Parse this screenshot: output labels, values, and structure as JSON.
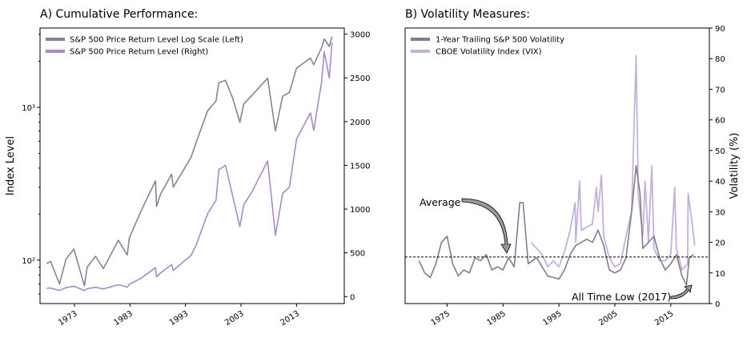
{
  "chart_data": [
    {
      "type": "line",
      "title": "A) Cumulative Performance:",
      "ylabel": "Index Level",
      "y_scale": "log",
      "ylim_left": [
        52,
        3300
      ],
      "ylim_right": [
        -80,
        3070
      ],
      "xlim": [
        1966.8,
        2021.6
      ],
      "x_ticks": [
        "1973",
        "1983",
        "1993",
        "2003",
        "2013"
      ],
      "y_ticks_left": [
        "10³",
        "10²"
      ],
      "y_ticks_right": [
        "3000",
        "2500",
        "2000",
        "1500",
        "1000",
        "500",
        "0"
      ],
      "legend_placement": "top-left",
      "colors": {
        "log_series": "#8c8097",
        "right_series": "#a888cf"
      },
      "series": [
        {
          "name": "S&P 500 Price Return Level Log Scale (Left)",
          "axis": "left",
          "x": [
            1968,
            1968.7,
            1970.3,
            1971.5,
            1972.9,
            1974.8,
            1975.3,
            1976.8,
            1978.2,
            1980.9,
            1982.5,
            1982.9,
            1985,
            1987.6,
            1987.8,
            1988.5,
            1990.5,
            1990.8,
            1994,
            1995,
            1997,
            1998.5,
            1999,
            2000.2,
            2001.5,
            2002.8,
            2003.5,
            2005,
            2007.8,
            2009.2,
            2010.5,
            2011.7,
            2013,
            2015.5,
            2016.1,
            2017.5,
            2018,
            2018.9,
            2019.4
          ],
          "y": [
            95,
            98,
            70,
            102,
            118,
            68,
            90,
            106,
            88,
            135,
            108,
            140,
            210,
            330,
            225,
            270,
            365,
            300,
            470,
            600,
            950,
            1100,
            1450,
            1500,
            1150,
            800,
            1050,
            1200,
            1550,
            700,
            1180,
            1250,
            1800,
            2100,
            1900,
            2450,
            2800,
            2500,
            2900
          ]
        },
        {
          "name": "S&P 500 Price Return Level (Right)",
          "axis": "right",
          "x": [
            1968,
            1968.7,
            1970.3,
            1971.5,
            1972.9,
            1974.8,
            1975.3,
            1976.8,
            1978.2,
            1980.9,
            1982.5,
            1982.9,
            1985,
            1987.6,
            1987.8,
            1988.5,
            1990.5,
            1990.8,
            1994,
            1995,
            1997,
            1998.5,
            1999,
            2000.2,
            2001.5,
            2002.8,
            2003.5,
            2005,
            2007.8,
            2009.2,
            2010.5,
            2011.7,
            2013,
            2015.5,
            2016.1,
            2017.5,
            2018,
            2018.9,
            2019.4
          ],
          "y": [
            95,
            98,
            70,
            102,
            118,
            68,
            90,
            106,
            88,
            135,
            108,
            140,
            210,
            330,
            225,
            270,
            365,
            300,
            470,
            600,
            950,
            1100,
            1450,
            1500,
            1150,
            800,
            1050,
            1200,
            1550,
            700,
            1180,
            1250,
            1800,
            2100,
            1900,
            2450,
            2800,
            2500,
            2900
          ]
        }
      ]
    },
    {
      "type": "line",
      "title": "B) Volatility Measures:",
      "ylabel": "Volatility (%)",
      "ylim": [
        0,
        90
      ],
      "xlim": [
        1967.5,
        2021.9
      ],
      "x_ticks": [
        "1975",
        "1985",
        "1995",
        "2005",
        "2015"
      ],
      "y_ticks": [
        "0",
        "10",
        "20",
        "30",
        "40",
        "50",
        "60",
        "70",
        "80",
        "90"
      ],
      "average_line": 15.2,
      "legend_placement": "top-left",
      "colors": {
        "trailing": "#857a8f",
        "vix": "#c4b0dd",
        "average": "#000000"
      },
      "series": [
        {
          "name": "1-Year Trailing S&P 500 Volatility",
          "x": [
            1970,
            1971,
            1972,
            1973,
            1974,
            1975,
            1976,
            1977,
            1978,
            1979,
            1980,
            1981,
            1982,
            1983,
            1984,
            1985,
            1986,
            1987,
            1988,
            1988.6,
            1989.5,
            1991,
            1993,
            1995,
            1996,
            1997,
            1998,
            1999,
            2000,
            2001,
            2002,
            2003,
            2004,
            2005,
            2006,
            2007,
            2008,
            2008.8,
            2009.5,
            2010,
            2011,
            2012,
            2013,
            2014,
            2015,
            2016,
            2017,
            2017.8,
            2018.3,
            2019.1
          ],
          "y": [
            14,
            10,
            8.5,
            13,
            20,
            22,
            13,
            9,
            11,
            10,
            15,
            14,
            16,
            11,
            12,
            11,
            15,
            12,
            33,
            33,
            13,
            15,
            9,
            8,
            11,
            16,
            19,
            20,
            21,
            20,
            24,
            19,
            11,
            10,
            11,
            15,
            30,
            45,
            36,
            18,
            20,
            22,
            15,
            11,
            13,
            16,
            9,
            6,
            15,
            16
          ]
        },
        {
          "name": "CBOE Volatility Index (VIX)",
          "x": [
            1990,
            1991,
            1992,
            1993,
            1994,
            1995,
            1996,
            1997,
            1997.9,
            1998,
            1998.7,
            1999,
            2000,
            2001,
            2001.7,
            2002,
            2002.6,
            2003,
            2004,
            2005,
            2006,
            2007,
            2008,
            2008.8,
            2009.2,
            2010,
            2010.4,
            2011,
            2011.6,
            2012,
            2013,
            2014,
            2015,
            2015.7,
            2016,
            2017,
            2018,
            2018.1,
            2018.9,
            2019.3
          ],
          "y": [
            20,
            18,
            16,
            12,
            14,
            12,
            17,
            24,
            33,
            20,
            40,
            24,
            25,
            26,
            38,
            30,
            42,
            22,
            15,
            12,
            13,
            22,
            30,
            81,
            35,
            22,
            40,
            20,
            45,
            18,
            14,
            14,
            16,
            38,
            18,
            11,
            13,
            36,
            25,
            19
          ]
        }
      ],
      "annotations": [
        "Average",
        "All Time Low (2017)"
      ]
    }
  ]
}
